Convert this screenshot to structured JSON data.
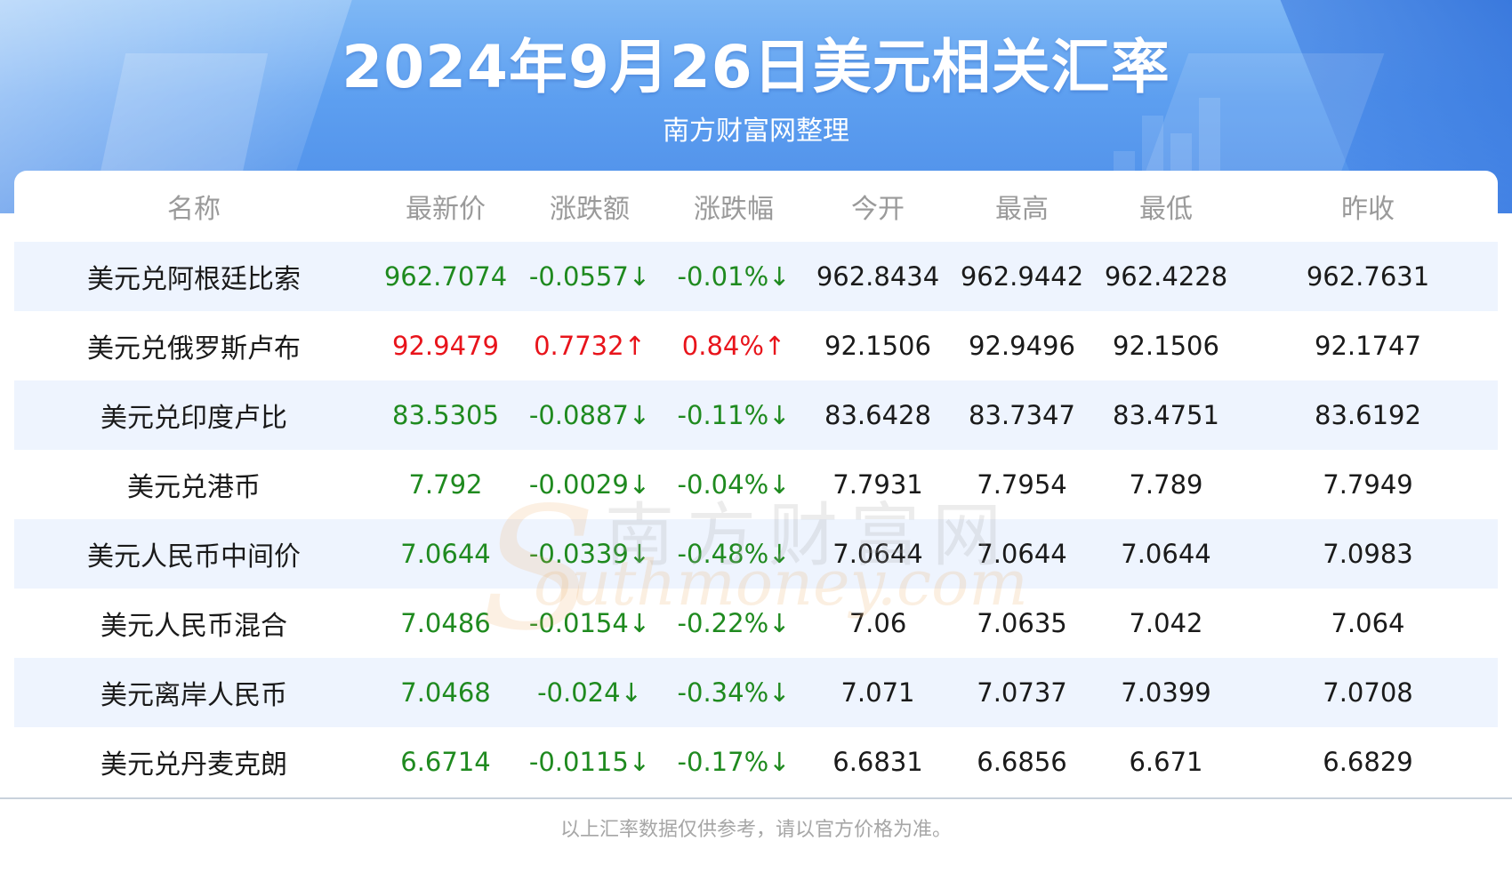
{
  "header": {
    "title": "2024年9月26日美元相关汇率",
    "subtitle": "南方财富网整理"
  },
  "table": {
    "columns": [
      "名称",
      "最新价",
      "涨跌额",
      "涨跌幅",
      "今开",
      "最高",
      "最低",
      "昨收"
    ],
    "rows": [
      {
        "name": "美元兑阿根廷比索",
        "latest": "962.7074",
        "change": "-0.0557↓",
        "pct": "-0.01%↓",
        "open": "962.8434",
        "high": "962.9442",
        "low": "962.4228",
        "prev": "962.7631",
        "trend": "down"
      },
      {
        "name": "美元兑俄罗斯卢布",
        "latest": "92.9479",
        "change": "0.7732↑",
        "pct": "0.84%↑",
        "open": "92.1506",
        "high": "92.9496",
        "low": "92.1506",
        "prev": "92.1747",
        "trend": "up"
      },
      {
        "name": "美元兑印度卢比",
        "latest": "83.5305",
        "change": "-0.0887↓",
        "pct": "-0.11%↓",
        "open": "83.6428",
        "high": "83.7347",
        "low": "83.4751",
        "prev": "83.6192",
        "trend": "down"
      },
      {
        "name": "美元兑港币",
        "latest": "7.792",
        "change": "-0.0029↓",
        "pct": "-0.04%↓",
        "open": "7.7931",
        "high": "7.7954",
        "low": "7.789",
        "prev": "7.7949",
        "trend": "down"
      },
      {
        "name": "美元人民币中间价",
        "latest": "7.0644",
        "change": "-0.0339↓",
        "pct": "-0.48%↓",
        "open": "7.0644",
        "high": "7.0644",
        "low": "7.0644",
        "prev": "7.0983",
        "trend": "down"
      },
      {
        "name": "美元人民币混合",
        "latest": "7.0486",
        "change": "-0.0154↓",
        "pct": "-0.22%↓",
        "open": "7.06",
        "high": "7.0635",
        "low": "7.042",
        "prev": "7.064",
        "trend": "down"
      },
      {
        "name": "美元离岸人民币",
        "latest": "7.0468",
        "change": "-0.024↓",
        "pct": "-0.34%↓",
        "open": "7.071",
        "high": "7.0737",
        "low": "7.0399",
        "prev": "7.0708",
        "trend": "down"
      },
      {
        "name": "美元兑丹麦克朗",
        "latest": "6.6714",
        "change": "-0.0115↓",
        "pct": "-0.17%↓",
        "open": "6.6831",
        "high": "6.6856",
        "low": "6.671",
        "prev": "6.6829",
        "trend": "down"
      }
    ]
  },
  "watermark": {
    "cn": "南方财富网",
    "en": "outhmoney.com",
    "s": "S"
  },
  "footer": {
    "note": "以上汇率数据仅供参考，请以官方价格为准。"
  },
  "colors": {
    "up": "#e8141b",
    "down": "#1f8a1f",
    "row_alt": "#eef4fe",
    "header_blue": "#5d9ff0"
  }
}
